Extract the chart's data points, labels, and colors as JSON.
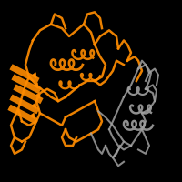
{
  "background_color": "#000000",
  "fig_width": 2.0,
  "fig_height": 2.0,
  "dpi": 100,
  "orange_color": "#FF8C00",
  "gray_color": "#A0A0A0"
}
